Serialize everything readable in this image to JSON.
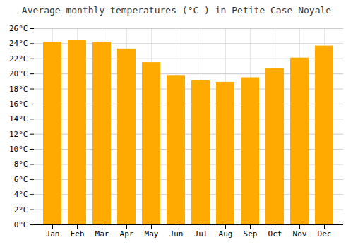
{
  "chart_data": {
    "type": "bar",
    "title": "Average monthly temperatures (°C ) in Petite Case Noyale",
    "categories": [
      "Jan",
      "Feb",
      "Mar",
      "Apr",
      "May",
      "Jun",
      "Jul",
      "Aug",
      "Sep",
      "Oct",
      "Nov",
      "Dec"
    ],
    "values": [
      24.2,
      24.5,
      24.2,
      23.3,
      21.5,
      19.8,
      19.1,
      18.9,
      19.5,
      20.7,
      22.1,
      23.7
    ],
    "color": "#FFAA00",
    "ylim": [
      0,
      26
    ],
    "yticks": [
      {
        "value": 0,
        "label": "0°C"
      },
      {
        "value": 2,
        "label": "2°C"
      },
      {
        "value": 4,
        "label": "4°C"
      },
      {
        "value": 6,
        "label": "6°C"
      },
      {
        "value": 8,
        "label": "8°C"
      },
      {
        "value": 10,
        "label": "10°C"
      },
      {
        "value": 12,
        "label": "12°C"
      },
      {
        "value": 14,
        "label": "14°C"
      },
      {
        "value": 16,
        "label": "16°C"
      },
      {
        "value": 18,
        "label": "18°C"
      },
      {
        "value": 20,
        "label": "20°C"
      },
      {
        "value": 22,
        "label": "22°C"
      },
      {
        "value": 24,
        "label": "24°C"
      },
      {
        "value": 26,
        "label": "26°C"
      }
    ],
    "grid": true
  }
}
